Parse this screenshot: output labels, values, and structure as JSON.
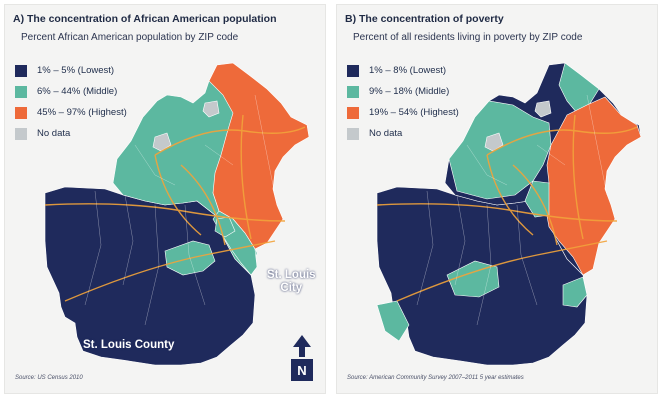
{
  "panels": [
    {
      "title": "A) The concentration of African American population",
      "subtitle": "Percent African American population by ZIP code",
      "legend": [
        {
          "label": "1% – 5% (Lowest)",
          "color": "#1f2a5c"
        },
        {
          "label": "6% – 44% (Middle)",
          "color": "#5cb8a0"
        },
        {
          "label": "45% – 97% (Highest)",
          "color": "#ee6a3a"
        },
        {
          "label": "No data",
          "color": "#c4c9cc"
        }
      ],
      "source": "Source: US Census 2010",
      "labels": {
        "county": "St. Louis County",
        "city_line1": "St. Louis",
        "city_line2": "City"
      },
      "north": "N"
    },
    {
      "title": "B) The concentration of poverty",
      "subtitle": "Percent of all residents living in poverty by ZIP code",
      "legend": [
        {
          "label": "1% – 8% (Lowest)",
          "color": "#1f2a5c"
        },
        {
          "label": "9% – 18% (Middle)",
          "color": "#5cb8a0"
        },
        {
          "label": "19% – 54% (Highest)",
          "color": "#ee6a3a"
        },
        {
          "label": "No data",
          "color": "#c4c9cc"
        }
      ],
      "source": "Source: American Community Survey 2007–2011 5 year estimates"
    }
  ],
  "colors": {
    "low": "#1f2a5c",
    "mid": "#5cb8a0",
    "high": "#ee6a3a",
    "nodata": "#c4c9cc",
    "roads": "#f2a33a"
  }
}
